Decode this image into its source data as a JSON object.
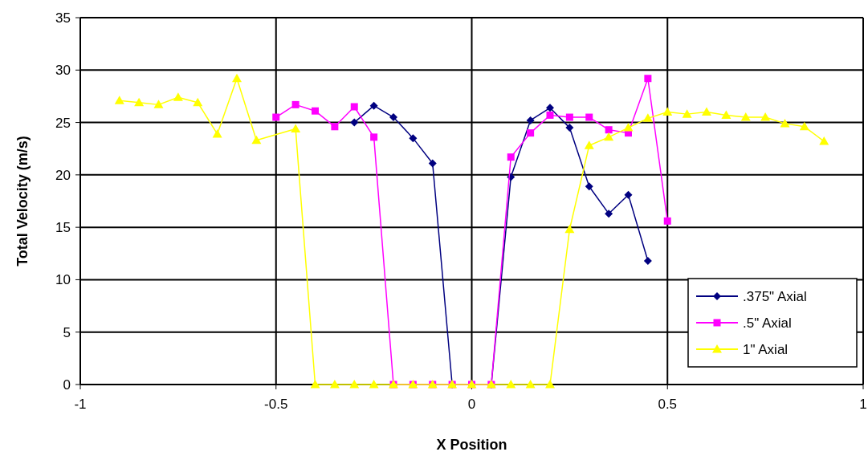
{
  "chart_data": {
    "type": "line",
    "xlabel": "X Position",
    "ylabel": "Total Velocity (m/s)",
    "xlim": [
      -1,
      1
    ],
    "xticks": [
      -1,
      -0.5,
      0,
      0.5,
      1
    ],
    "ylim": [
      0,
      35
    ],
    "yticks": [
      0,
      5,
      10,
      15,
      20,
      25,
      30,
      35
    ],
    "grid": true,
    "legend": "bottom right",
    "series": [
      {
        "name": ".375\" Axial",
        "color": "#000080",
        "marker": "diamond",
        "x": [
          -0.3,
          -0.25,
          -0.2,
          -0.15,
          -0.1,
          -0.05,
          0,
          0.05,
          0.1,
          0.15,
          0.2,
          0.25,
          0.3,
          0.35,
          0.4,
          0.45
        ],
        "values": [
          25.0,
          26.6,
          25.5,
          23.5,
          21.1,
          0,
          0,
          0,
          19.8,
          25.2,
          26.4,
          24.5,
          18.9,
          16.3,
          18.1,
          11.8
        ]
      },
      {
        "name": ".5\" Axial",
        "color": "#ff00ff",
        "marker": "square",
        "x": [
          -0.5,
          -0.45,
          -0.4,
          -0.35,
          -0.3,
          -0.25,
          -0.2,
          -0.15,
          -0.1,
          -0.05,
          0,
          0.05,
          0.1,
          0.15,
          0.2,
          0.25,
          0.3,
          0.35,
          0.4,
          0.45,
          0.5
        ],
        "values": [
          25.5,
          26.7,
          26.1,
          24.6,
          26.5,
          23.6,
          0,
          0,
          0,
          0,
          0,
          0,
          21.7,
          24.0,
          25.7,
          25.5,
          25.5,
          24.3,
          24.0,
          29.2,
          15.6
        ]
      },
      {
        "name": "1\" Axial",
        "color": "#ffff00",
        "marker": "triangle",
        "x": [
          -0.9,
          -0.85,
          -0.8,
          -0.75,
          -0.7,
          -0.65,
          -0.6,
          -0.55,
          -0.45,
          -0.4,
          -0.35,
          -0.3,
          -0.25,
          -0.2,
          -0.15,
          -0.1,
          -0.05,
          0,
          0.05,
          0.1,
          0.15,
          0.2,
          0.25,
          0.3,
          0.35,
          0.4,
          0.45,
          0.5,
          0.55,
          0.6,
          0.65,
          0.7,
          0.75,
          0.8,
          0.85,
          0.9
        ],
        "values": [
          27.1,
          26.9,
          26.7,
          27.4,
          26.9,
          23.9,
          29.2,
          23.3,
          24.4,
          0,
          0,
          0,
          0,
          0,
          0,
          0,
          0,
          0,
          0,
          0,
          0,
          0,
          14.8,
          22.8,
          23.6,
          24.5,
          25.4,
          26.0,
          25.8,
          26.0,
          25.7,
          25.5,
          25.5,
          24.9,
          24.6,
          23.2
        ]
      }
    ]
  }
}
